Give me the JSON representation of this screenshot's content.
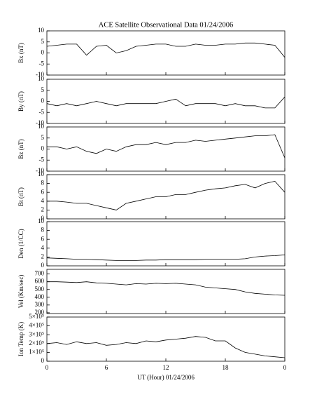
{
  "chart_data": [
    {
      "type": "line",
      "title": "ACE Satellite Observational Data   01/24/2006",
      "y_label": "Bx (nT)",
      "ylim": [
        -10,
        10
      ],
      "yticks": [
        -10,
        -5,
        0,
        5,
        10
      ],
      "x": [
        0,
        1,
        2,
        3,
        4,
        5,
        6,
        7,
        8,
        9,
        10,
        11,
        12,
        13,
        14,
        15,
        16,
        17,
        18,
        19,
        20,
        21,
        22,
        23,
        24
      ],
      "values": [
        3,
        3.5,
        4,
        4,
        -1,
        3,
        3.5,
        0,
        1,
        3,
        3.5,
        4,
        4,
        3,
        3,
        4,
        3.5,
        3.5,
        4,
        4,
        4.5,
        4.5,
        4,
        3.5,
        -2
      ]
    },
    {
      "type": "line",
      "y_label": "By (nT)",
      "ylim": [
        -10,
        10
      ],
      "yticks": [
        -10,
        -5,
        0,
        5,
        10
      ],
      "x": [
        0,
        1,
        2,
        3,
        4,
        5,
        6,
        7,
        8,
        9,
        10,
        11,
        12,
        13,
        14,
        15,
        16,
        17,
        18,
        19,
        20,
        21,
        22,
        23,
        24
      ],
      "values": [
        -1,
        -2,
        -1,
        -2,
        -1,
        0,
        -1,
        -2,
        -1,
        -1,
        -1,
        -1,
        0,
        1,
        -2,
        -1,
        -1,
        -1,
        -2,
        -1,
        -2,
        -2,
        -3,
        -3,
        2
      ]
    },
    {
      "type": "line",
      "y_label": "Bz (nT)",
      "ylim": [
        -10,
        10
      ],
      "yticks": [
        -10,
        -5,
        0,
        5,
        10
      ],
      "x": [
        0,
        1,
        2,
        3,
        4,
        5,
        6,
        7,
        8,
        9,
        10,
        11,
        12,
        13,
        14,
        15,
        16,
        17,
        18,
        19,
        20,
        21,
        22,
        23,
        24
      ],
      "values": [
        1,
        1,
        0,
        1,
        -1,
        -2,
        0,
        -1,
        1,
        2,
        2,
        3,
        2,
        3,
        3,
        4,
        3.5,
        4,
        4.5,
        5,
        5.5,
        6,
        6,
        6.5,
        -4
      ]
    },
    {
      "type": "line",
      "y_label": "Bt (nT)",
      "ylim": [
        0,
        10
      ],
      "yticks": [
        0,
        2,
        4,
        6,
        8,
        10
      ],
      "x": [
        0,
        1,
        2,
        3,
        4,
        5,
        6,
        7,
        8,
        9,
        10,
        11,
        12,
        13,
        14,
        15,
        16,
        17,
        18,
        19,
        20,
        21,
        22,
        23,
        24
      ],
      "values": [
        4,
        4,
        3.8,
        3.5,
        3.5,
        3,
        2.5,
        2,
        3.5,
        4,
        4.5,
        5,
        5,
        5.5,
        5.5,
        6,
        6.5,
        6.8,
        7,
        7.5,
        7.8,
        7,
        8,
        8.5,
        6
      ]
    },
    {
      "type": "line",
      "y_label": "Den (1/CC)",
      "ylim": [
        0,
        10
      ],
      "yticks": [
        0,
        2,
        4,
        6,
        8,
        10
      ],
      "x": [
        0,
        1,
        2,
        3,
        4,
        5,
        6,
        7,
        8,
        9,
        10,
        11,
        12,
        13,
        14,
        15,
        16,
        17,
        18,
        19,
        20,
        21,
        22,
        23,
        24
      ],
      "values": [
        1.8,
        1.7,
        1.6,
        1.5,
        1.5,
        1.4,
        1.3,
        1.2,
        1.2,
        1.2,
        1.3,
        1.3,
        1.4,
        1.4,
        1.4,
        1.4,
        1.5,
        1.5,
        1.5,
        1.5,
        1.6,
        2,
        2.2,
        2.3,
        2.5
      ]
    },
    {
      "type": "line",
      "y_label": "Vel (Km/sec)",
      "ylim": [
        190,
        760
      ],
      "yticks": [
        200,
        300,
        400,
        500,
        600,
        700
      ],
      "x": [
        0,
        1,
        2,
        3,
        4,
        5,
        6,
        7,
        8,
        9,
        10,
        11,
        12,
        13,
        14,
        15,
        16,
        17,
        18,
        19,
        20,
        21,
        22,
        23,
        24
      ],
      "values": [
        600,
        600,
        595,
        590,
        600,
        585,
        580,
        570,
        560,
        575,
        570,
        580,
        575,
        580,
        570,
        560,
        530,
        520,
        510,
        500,
        470,
        450,
        440,
        430,
        425
      ]
    },
    {
      "type": "line",
      "y_label": "Ion Temp (K)",
      "x_label": "UT (Hour)   01/24/2006",
      "ylim": [
        0,
        500000
      ],
      "yticks": [
        0,
        {
          "value": 100000,
          "label": "1×10⁵"
        },
        {
          "value": 200000,
          "label": "2×10⁵"
        },
        {
          "value": 300000,
          "label": "3×10⁵"
        },
        {
          "value": 400000,
          "label": "4×10⁵"
        },
        {
          "value": 500000,
          "label": "5×10⁵"
        }
      ],
      "xlim": [
        0,
        24
      ],
      "xticks": [
        0,
        6,
        12,
        18,
        {
          "value": 24,
          "label": "0"
        }
      ],
      "x": [
        0,
        1,
        2,
        3,
        4,
        5,
        6,
        7,
        8,
        9,
        10,
        11,
        12,
        13,
        14,
        15,
        16,
        17,
        18,
        19,
        20,
        21,
        22,
        23,
        24
      ],
      "values": [
        200000,
        210000,
        190000,
        220000,
        200000,
        210000,
        180000,
        190000,
        210000,
        200000,
        230000,
        220000,
        240000,
        250000,
        260000,
        280000,
        270000,
        230000,
        230000,
        150000,
        100000,
        80000,
        60000,
        50000,
        40000
      ]
    }
  ]
}
